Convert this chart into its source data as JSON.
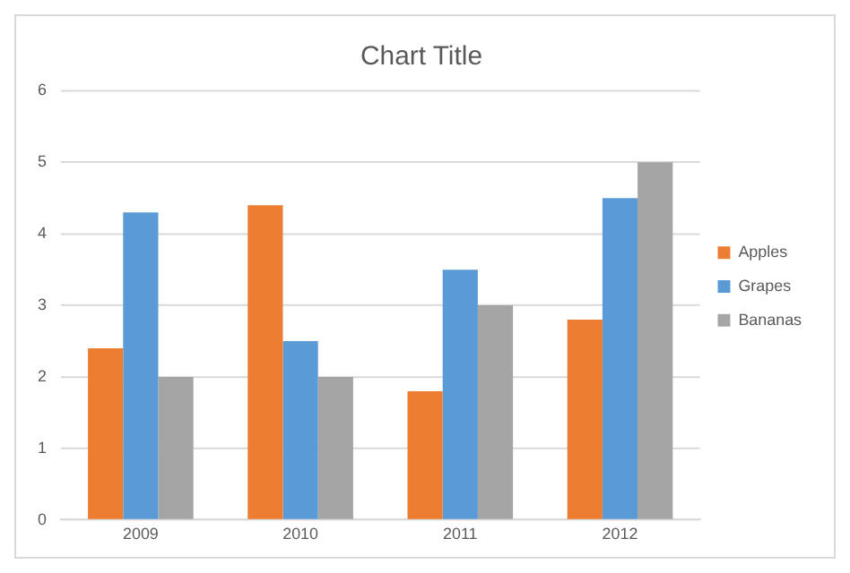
{
  "chart_data": {
    "type": "bar",
    "title": "Chart Title",
    "categories": [
      "2009",
      "2010",
      "2011",
      "2012"
    ],
    "series": [
      {
        "name": "Apples",
        "color": "#ed7d31",
        "values": [
          2.4,
          4.4,
          1.8,
          2.8
        ]
      },
      {
        "name": "Grapes",
        "color": "#5b9bd5",
        "values": [
          4.3,
          2.5,
          3.5,
          4.5
        ]
      },
      {
        "name": "Bananas",
        "color": "#a5a5a5",
        "values": [
          2,
          2,
          3,
          5
        ]
      }
    ],
    "ylim": [
      0,
      6
    ],
    "yticks": [
      0,
      1,
      2,
      3,
      4,
      5,
      6
    ],
    "grid": "y",
    "legend": "right"
  }
}
